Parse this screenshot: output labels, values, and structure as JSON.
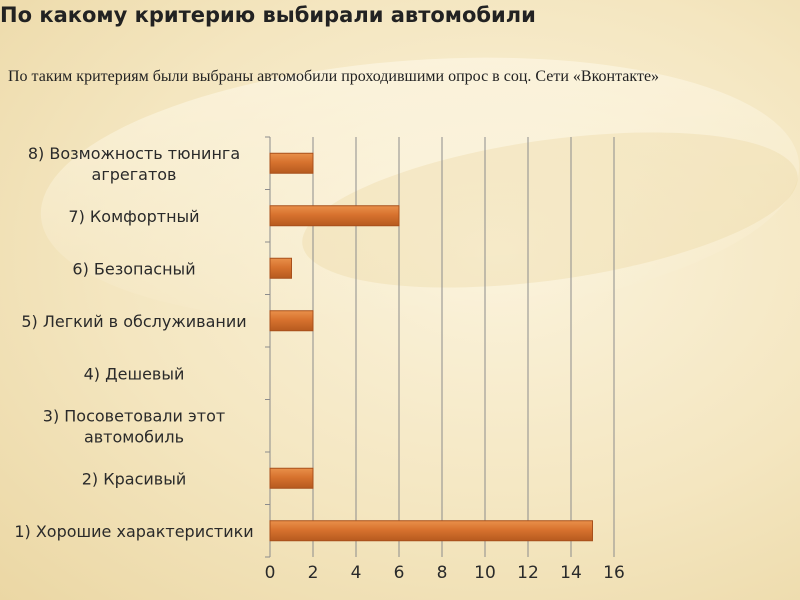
{
  "slide": {
    "title": "По какому критерию выбирали автомобили",
    "subtitle": "По таким критериям были выбраны автомобили проходившими опрос в соц. Сети «Вконтакте»"
  },
  "colors": {
    "background": "#f4e6c0",
    "bar_fill": "#d7722e",
    "bar_edge": "#a8501c",
    "grid": "#8c8c8c",
    "text": "#2a2a2a"
  },
  "chart_data": {
    "type": "bar",
    "orientation": "horizontal",
    "categories": [
      "1) Хорошие характеристики",
      "2) Красивый",
      "3) Посоветовали этот автомобиль",
      "4) Дешевый",
      "5) Легкий в обслуживании",
      "6) Безопасный",
      "7) Комфортный",
      "8) Возможность тюнинга агрегатов"
    ],
    "category_label_lines": [
      [
        "1) Хорошие характеристики"
      ],
      [
        "2) Красивый"
      ],
      [
        "3) Посоветовали этот",
        "автомобиль"
      ],
      [
        "4) Дешевый"
      ],
      [
        "5) Легкий в обслуживании"
      ],
      [
        "6) Безопасный"
      ],
      [
        "7) Комфортный"
      ],
      [
        "8) Возможность тюнинга",
        "агрегатов"
      ]
    ],
    "values": [
      15,
      2,
      0,
      0,
      2,
      1,
      6,
      2
    ],
    "xlim": [
      0,
      16
    ],
    "xticks": [
      0,
      2,
      4,
      6,
      8,
      10,
      12,
      14,
      16
    ],
    "grid": true,
    "legend": false,
    "title": "",
    "xlabel": "",
    "ylabel": ""
  }
}
